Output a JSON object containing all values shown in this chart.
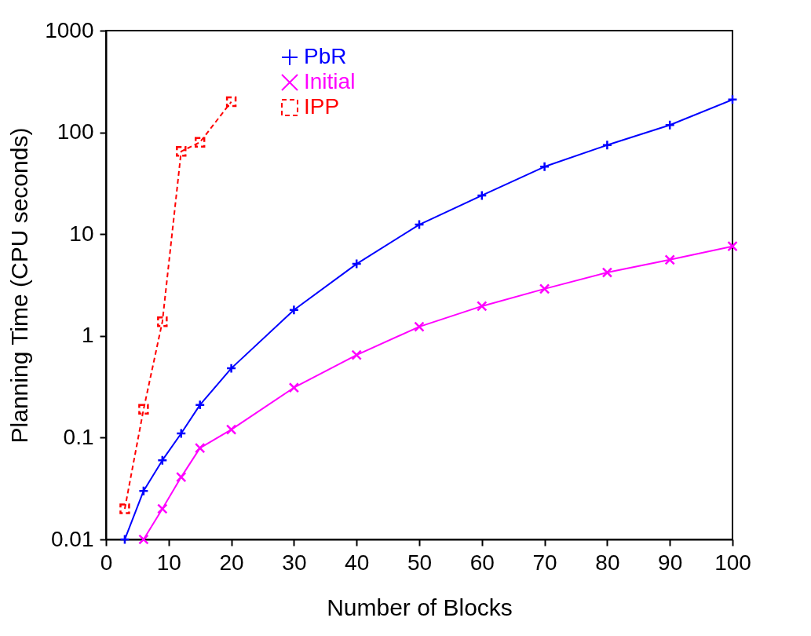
{
  "chart_data": {
    "type": "line",
    "xlabel": "Number of Blocks",
    "ylabel": "Planning Time (CPU seconds)",
    "log": "y",
    "xlim": [
      0,
      100
    ],
    "xticks": [
      0,
      10,
      20,
      30,
      40,
      50,
      60,
      70,
      80,
      90,
      100
    ],
    "ylim": [
      0.01,
      1000
    ],
    "yticks": [
      0.01,
      0.1,
      1,
      10,
      100,
      1000
    ],
    "grid": false,
    "legend": "top left",
    "series": [
      {
        "name": "PbR",
        "color": "#0000ff",
        "marker": "plus",
        "line_style": "solid",
        "x": [
          3,
          6,
          9,
          12,
          15,
          20,
          30,
          40,
          50,
          60,
          70,
          80,
          90,
          100
        ],
        "values": [
          0.01,
          0.03,
          0.06,
          0.11,
          0.21,
          0.48,
          1.8,
          5.1,
          12.4,
          24,
          46,
          75,
          118,
          210
        ]
      },
      {
        "name": "Initial",
        "color": "#ff00ff",
        "marker": "cross",
        "line_style": "solid",
        "x": [
          6,
          9,
          12,
          15,
          20,
          30,
          40,
          50,
          60,
          70,
          80,
          90,
          100
        ],
        "values": [
          0.01,
          0.02,
          0.041,
          0.079,
          0.12,
          0.31,
          0.65,
          1.23,
          1.96,
          2.9,
          4.2,
          5.6,
          7.6
        ]
      },
      {
        "name": "IPP",
        "color": "#ff0000",
        "marker": "square",
        "line_style": "dashed",
        "x": [
          3,
          6,
          9,
          12,
          15,
          20
        ],
        "values": [
          0.02,
          0.19,
          1.38,
          65,
          80,
          200
        ]
      }
    ]
  }
}
